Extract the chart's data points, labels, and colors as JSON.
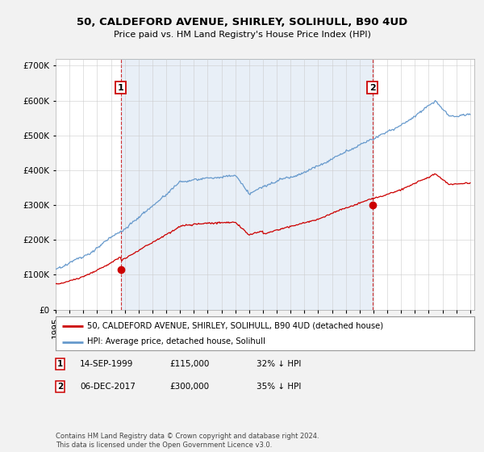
{
  "title": "50, CALDEFORD AVENUE, SHIRLEY, SOLIHULL, B90 4UD",
  "subtitle": "Price paid vs. HM Land Registry's House Price Index (HPI)",
  "legend_entry1": "50, CALDEFORD AVENUE, SHIRLEY, SOLIHULL, B90 4UD (detached house)",
  "legend_entry2": "HPI: Average price, detached house, Solihull",
  "annotation1_date": "14-SEP-1999",
  "annotation1_price": "£115,000",
  "annotation1_hpi": "32% ↓ HPI",
  "annotation2_date": "06-DEC-2017",
  "annotation2_price": "£300,000",
  "annotation2_hpi": "35% ↓ HPI",
  "footer": "Contains HM Land Registry data © Crown copyright and database right 2024.\nThis data is licensed under the Open Government Licence v3.0.",
  "red_color": "#cc0000",
  "blue_color": "#6699cc",
  "shade_color": "#ddeeff",
  "background_color": "#f0f0f0",
  "plot_bg_color": "#ffffff",
  "grid_color": "#cccccc",
  "date1_year": 1999.71,
  "date2_year": 2017.92,
  "point1_price": 115000,
  "point2_price": 300000
}
